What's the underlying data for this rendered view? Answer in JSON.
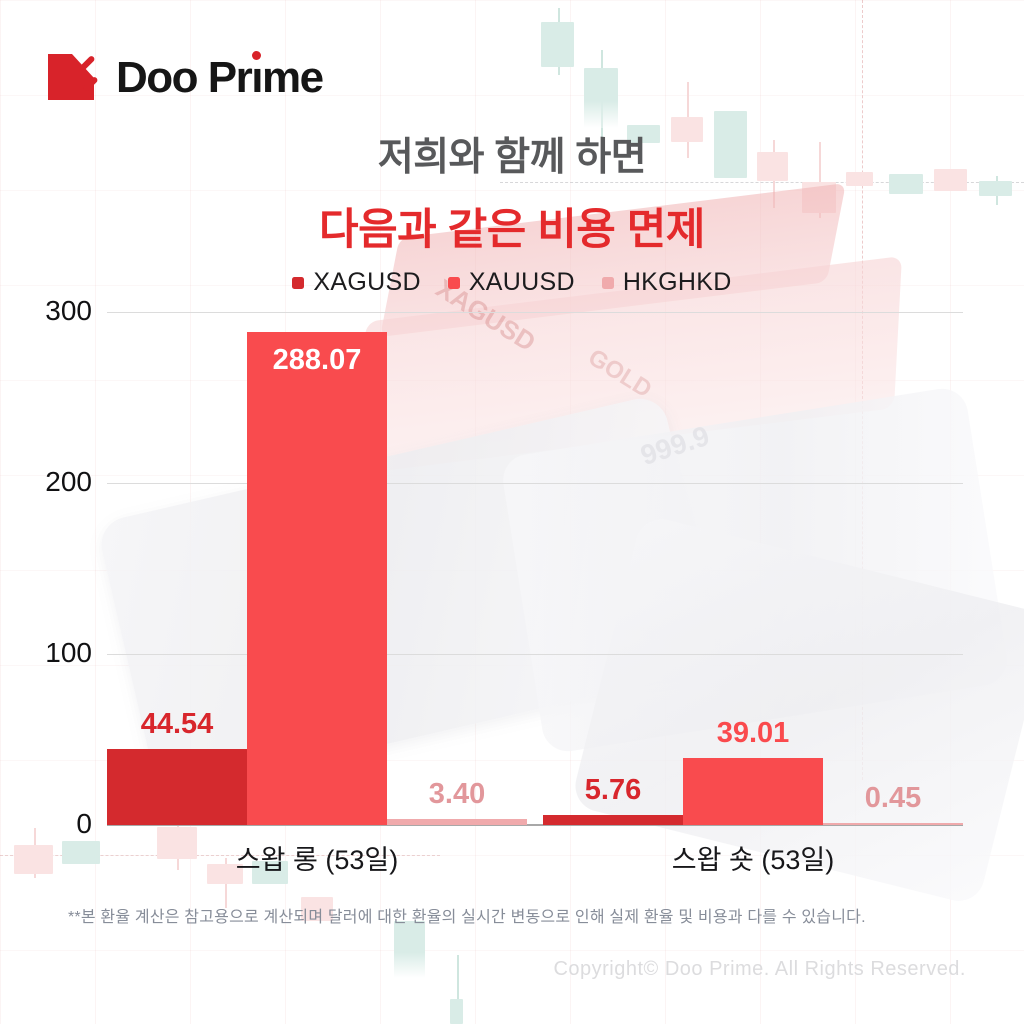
{
  "brand": {
    "wordmark_pre": "Doo Pr",
    "wordmark_i": "ı",
    "wordmark_post": "me",
    "brand_red": "#d8232a"
  },
  "title": {
    "line1": "저희와 함께 하면",
    "line2": "다음과 같은 비용 면제",
    "line1_color": "#58595b",
    "line2_color": "#e42a2c"
  },
  "chart_data": {
    "type": "bar",
    "title": "",
    "categories": [
      "스왑 롱 (53일)",
      "스왑 숏 (53일)"
    ],
    "series": [
      {
        "name": "XAGUSD",
        "color": "#d42a2e",
        "label_color": "#d8262c",
        "values": [
          44.54,
          5.76
        ],
        "labels": [
          "44.54",
          "5.76"
        ]
      },
      {
        "name": "XAUUSD",
        "color": "#f94b4e",
        "label_color": "#fa4a4d",
        "values": [
          288.07,
          39.01
        ],
        "labels": [
          "288.07",
          "39.01"
        ]
      },
      {
        "name": "HKGHKD",
        "color": "#f0aaac",
        "label_color": "#e2979b",
        "values": [
          3.4,
          0.45
        ],
        "labels": [
          "3.40",
          "0.45"
        ]
      }
    ],
    "ylim": [
      0,
      300
    ],
    "yticks": [
      0,
      100,
      200,
      300
    ],
    "grid": "horizontal",
    "legend_position": "top",
    "inside_label_color": "#ffffff"
  },
  "footnote": "**본 환율 계산은 참고용으로 계산되며 달러에 대한 환율의 실시간 변동으로 인해 실제 환율 및 비용과 다를 수 있습니다.",
  "copyright": "Copyright© Doo Prime. All Rights Reserved."
}
